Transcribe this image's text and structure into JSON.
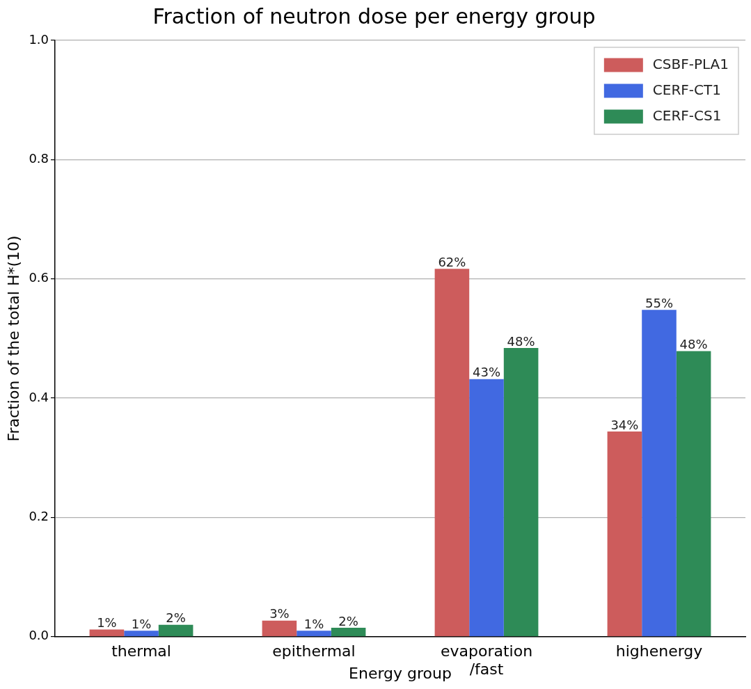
{
  "chart_data": {
    "type": "bar",
    "title": "Fraction of neutron dose per energy group",
    "xlabel": "Energy group",
    "ylabel": "Fraction of the total H*(10)",
    "categories": [
      "thermal",
      "epithermal",
      "evaporation\n/fast",
      "highenergy"
    ],
    "series": [
      {
        "name": "CSBF-PLA1",
        "color": "#cd5c5c",
        "values": [
          0.012,
          0.027,
          0.617,
          0.344
        ],
        "value_labels": [
          "1%",
          "3%",
          "62%",
          "34%"
        ]
      },
      {
        "name": "CERF-CT1",
        "color": "#4169e1",
        "values": [
          0.01,
          0.01,
          0.432,
          0.548
        ],
        "value_labels": [
          "1%",
          "1%",
          "43%",
          "55%"
        ]
      },
      {
        "name": "CERF-CS1",
        "color": "#2e8b57",
        "values": [
          0.02,
          0.015,
          0.484,
          0.479
        ],
        "value_labels": [
          "2%",
          "2%",
          "48%",
          "48%"
        ]
      }
    ],
    "ylim": [
      0,
      1
    ],
    "yticks": [
      {
        "value": 0,
        "label": "0.0"
      },
      {
        "value": 0.2,
        "label": "0.2"
      },
      {
        "value": 0.4,
        "label": "0.4"
      },
      {
        "value": 0.6,
        "label": "0.6"
      },
      {
        "value": 0.8,
        "label": "0.8"
      },
      {
        "value": 1,
        "label": "1.0"
      }
    ],
    "grid": "y",
    "legend": "top right"
  }
}
